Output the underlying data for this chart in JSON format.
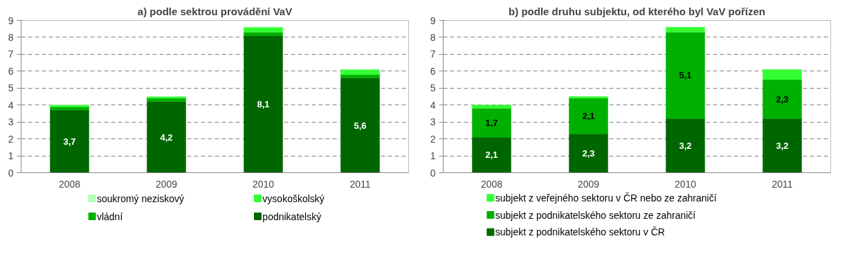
{
  "chart_data": [
    {
      "type": "bar",
      "title": "a) podle sektrou provádění VaV",
      "categories": [
        "2008",
        "2009",
        "2010",
        "2011"
      ],
      "stacked": true,
      "ylim": [
        0,
        9
      ],
      "yticks": [
        0,
        1,
        2,
        3,
        4,
        5,
        6,
        7,
        8,
        9
      ],
      "grid": "y",
      "legend": "bottom",
      "series": [
        {
          "name": "podnikatelský",
          "color": "#006600",
          "values": [
            3.7,
            4.2,
            8.1,
            5.6
          ],
          "value_labels": [
            "3,7",
            "4,2",
            "8,1",
            "5,6"
          ]
        },
        {
          "name": "vládní",
          "color": "#00b000",
          "values": [
            0.2,
            0.2,
            0.2,
            0.2
          ]
        },
        {
          "name": "vysokoškolský",
          "color": "#33ff33",
          "values": [
            0.1,
            0.1,
            0.3,
            0.3
          ]
        },
        {
          "name": "soukromý neziskový",
          "color": "#b3ffb3",
          "values": [
            0,
            0,
            0,
            0
          ]
        }
      ]
    },
    {
      "type": "bar",
      "title": "b) podle druhu subjektu, od kterého byl VaV pořízen",
      "categories": [
        "2008",
        "2009",
        "2010",
        "2011"
      ],
      "stacked": true,
      "ylim": [
        0,
        9
      ],
      "yticks": [
        0,
        1,
        2,
        3,
        4,
        5,
        6,
        7,
        8,
        9
      ],
      "grid": "y",
      "legend": "bottom",
      "series": [
        {
          "name": "subjekt z podnikatelského sektoru v ČR",
          "color": "#006600",
          "values": [
            2.1,
            2.3,
            3.2,
            3.2
          ],
          "value_labels": [
            "2,1",
            "2,3",
            "3,2",
            "3,2"
          ]
        },
        {
          "name": "subjekt z podnikatelského sektoru ze zahraničí",
          "color": "#00b000",
          "values": [
            1.7,
            2.1,
            5.1,
            2.3
          ],
          "value_labels": [
            "1,7",
            "2,1",
            "5,1",
            "2,3"
          ]
        },
        {
          "name": "subjekt z veřejného sektoru v ČR nebo ze zahraničí",
          "color": "#33ff33",
          "values": [
            0.2,
            0.1,
            0.3,
            0.6
          ]
        }
      ]
    }
  ]
}
